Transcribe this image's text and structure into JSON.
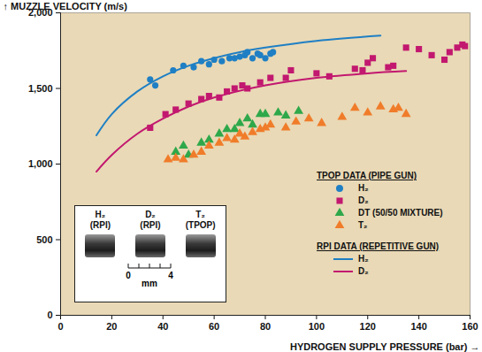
{
  "chart_data": {
    "type": "scatter",
    "x_label": "HYDROGEN SUPPLY PRESSURE (bar)",
    "y_label": "MUZZLE VELOCITY (m/s)",
    "xlim": [
      0,
      160
    ],
    "ylim": [
      0,
      2000
    ],
    "xticks": [
      0,
      20,
      40,
      60,
      80,
      100,
      120,
      140,
      160
    ],
    "yticks": [
      0,
      500,
      1000,
      1500,
      2000
    ],
    "legend": "lower right",
    "legend_groups": [
      {
        "title": "TPOP DATA (PIPE GUN)",
        "series": [
          {
            "name": "H₂",
            "type": "scatter",
            "marker": "circle",
            "color": "#1f7fc4",
            "x": [
              35,
              37,
              44,
              48,
              52,
              55,
              58,
              60,
              63,
              66,
              68,
              70,
              72,
              73,
              75,
              77,
              78,
              80,
              82,
              83
            ],
            "values": [
              1560,
              1520,
              1620,
              1650,
              1640,
              1680,
              1660,
              1690,
              1680,
              1700,
              1700,
              1710,
              1720,
              1740,
              1700,
              1730,
              1720,
              1700,
              1730,
              1740
            ]
          },
          {
            "name": "D₂",
            "type": "scatter",
            "marker": "square",
            "color": "#c2186f",
            "x": [
              35,
              41,
              45,
              50,
              55,
              58,
              62,
              65,
              68,
              71,
              73,
              78,
              82,
              88,
              90,
              100,
              105,
              115,
              118,
              120,
              122,
              128,
              130,
              135,
              140,
              145,
              150,
              152,
              155,
              157,
              158
            ],
            "values": [
              1240,
              1330,
              1360,
              1400,
              1430,
              1450,
              1440,
              1480,
              1500,
              1520,
              1500,
              1540,
              1570,
              1570,
              1620,
              1600,
              1580,
              1630,
              1620,
              1670,
              1700,
              1640,
              1650,
              1770,
              1760,
              1720,
              1690,
              1740,
              1770,
              1790,
              1780
            ]
          },
          {
            "name": "DT (50/50 MIXTURE)",
            "type": "scatter",
            "marker": "triangle",
            "color": "#2ea84a",
            "x": [
              45,
              48,
              50,
              55,
              58,
              62,
              65,
              68,
              70,
              73,
              75,
              78,
              80,
              85,
              88,
              93
            ],
            "values": [
              1080,
              1120,
              1060,
              1140,
              1160,
              1200,
              1230,
              1230,
              1270,
              1300,
              1260,
              1330,
              1330,
              1340,
              1320,
              1350
            ]
          },
          {
            "name": "T₂",
            "type": "scatter",
            "marker": "triangle",
            "color": "#f07c2a",
            "x": [
              42,
              45,
              48,
              52,
              55,
              58,
              62,
              65,
              68,
              70,
              72,
              75,
              78,
              80,
              82,
              88,
              92,
              97,
              102,
              110,
              115,
              120,
              125,
              130,
              132,
              135
            ],
            "values": [
              1030,
              1040,
              1030,
              1060,
              1080,
              1120,
              1140,
              1170,
              1160,
              1200,
              1180,
              1210,
              1230,
              1240,
              1260,
              1240,
              1280,
              1300,
              1270,
              1310,
              1370,
              1340,
              1380,
              1360,
              1370,
              1330
            ]
          }
        ]
      },
      {
        "title": "RPI DATA (REPETITIVE GUN)",
        "series": [
          {
            "name": "H₂",
            "type": "line",
            "line_style": "solid",
            "color": "#1f7fc4",
            "x": [
              14,
              20,
              30,
              40,
              50,
              60,
              70,
              80,
              100,
              125
            ],
            "values": [
              1190,
              1330,
              1480,
              1580,
              1650,
              1700,
              1740,
              1770,
              1815,
              1850
            ]
          },
          {
            "name": "D₂",
            "type": "line",
            "line_style": "solid",
            "color": "#c2186f",
            "x": [
              14,
              20,
              30,
              40,
              50,
              60,
              80,
              100,
              120,
              135
            ],
            "values": [
              950,
              1060,
              1200,
              1300,
              1380,
              1440,
              1520,
              1570,
              1600,
              1615
            ]
          }
        ]
      }
    ],
    "inset": {
      "images": [
        {
          "label": "H₂",
          "source": "(RPI)"
        },
        {
          "label": "D₂",
          "source": "(RPI)"
        },
        {
          "label": "T₂",
          "source": "(TPOP)"
        }
      ],
      "scale": {
        "ticks": [
          0,
          4
        ],
        "unit": "mm"
      }
    }
  }
}
